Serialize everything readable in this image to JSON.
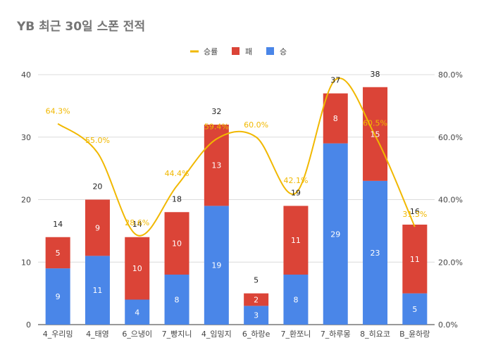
{
  "chart_data": {
    "type": "bar",
    "stacked": true,
    "title": "YB 최근 30일 스폰 전적",
    "categories": [
      "4_우리밍",
      "4_태영",
      "6_으냉이",
      "7_빵지니",
      "4_임밍지",
      "6_하랑e",
      "7_환쪼니",
      "7_하루몽",
      "8_히요코",
      "B_윤하랑"
    ],
    "series": [
      {
        "name": "승",
        "values": [
          9,
          11,
          4,
          8,
          19,
          3,
          8,
          29,
          23,
          5
        ],
        "color": "#4a86e8"
      },
      {
        "name": "패",
        "values": [
          5,
          9,
          10,
          10,
          13,
          2,
          11,
          8,
          15,
          11
        ],
        "color": "#db4437"
      }
    ],
    "totals": [
      14,
      20,
      14,
      18,
      32,
      5,
      19,
      37,
      38,
      16
    ],
    "line_series": {
      "name": "승률",
      "values": [
        64.3,
        55.0,
        28.6,
        44.4,
        59.4,
        60.0,
        42.1,
        78.4,
        60.5,
        31.3
      ],
      "labels": [
        "64.3%",
        "55.0%",
        "28.6%",
        "44.4%",
        "59.4%",
        "60.0%",
        "42.1%",
        "",
        "60.5%",
        "31.3%"
      ],
      "color": "#f1b800"
    },
    "legend": [
      "승률",
      "패",
      "승"
    ],
    "legend_position": "top",
    "ylim": [
      0,
      40
    ],
    "yticks": [
      "0",
      "10",
      "20",
      "30",
      "40"
    ],
    "y2lim": [
      0,
      80
    ],
    "y2ticks": [
      "0.0%",
      "20.0%",
      "40.0%",
      "60.0%",
      "80.0%"
    ],
    "grid": true
  }
}
